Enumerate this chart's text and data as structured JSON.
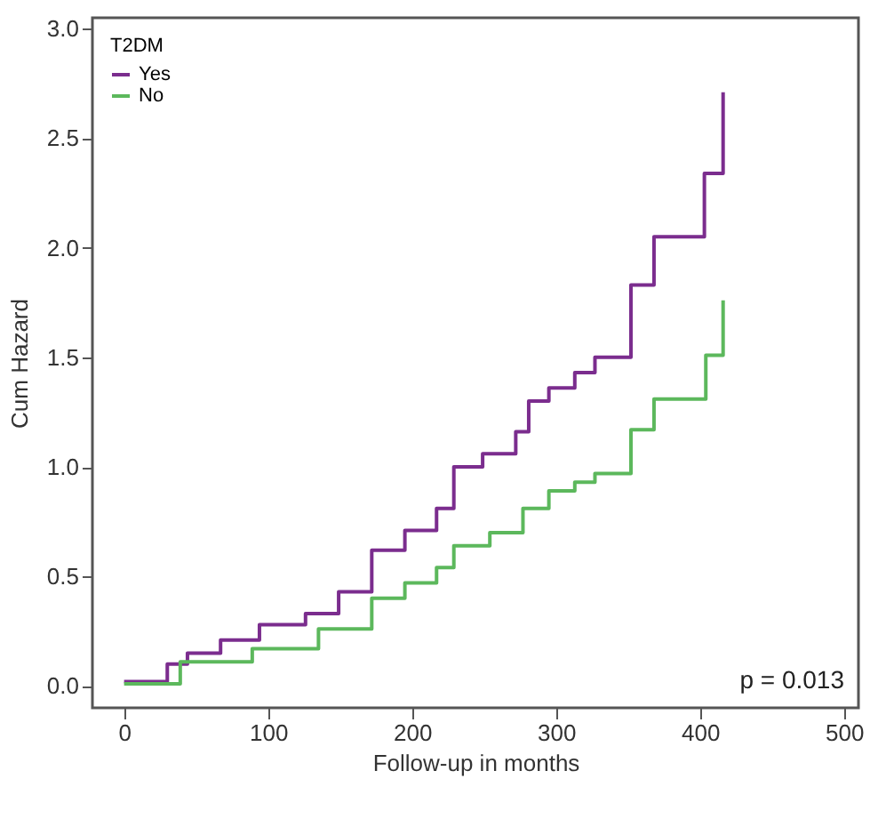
{
  "chart_data": {
    "type": "step",
    "xlabel": "Follow-up in months",
    "ylabel": "Cum Hazard",
    "legend_title": "T2DM",
    "legend": "top left",
    "marker": "none",
    "grid": false,
    "xlim": [
      -22,
      510
    ],
    "xticks": [
      0,
      100,
      200,
      300,
      400,
      500
    ],
    "ylim": [
      -0.1,
      3.05
    ],
    "yticks": [
      {
        "value": 0,
        "label": "0.0"
      },
      0.5,
      {
        "value": 1,
        "label": "1.0"
      },
      1.5,
      {
        "value": 2,
        "label": "2.0"
      },
      2.5,
      {
        "value": 3,
        "label": "3.0"
      }
    ],
    "annotations": [
      "p = 0.013"
    ],
    "series": [
      {
        "name": "Yes",
        "color": "#7b2d8e",
        "x": [
          0,
          30,
          44,
          67,
          94,
          126,
          149,
          172,
          195,
          217,
          229,
          249,
          272,
          281,
          295,
          313,
          327,
          352,
          368,
          403,
          416
        ],
        "values": [
          0.02,
          0.1,
          0.15,
          0.21,
          0.28,
          0.33,
          0.43,
          0.62,
          0.71,
          0.81,
          1.0,
          1.06,
          1.16,
          1.3,
          1.36,
          1.43,
          1.5,
          1.83,
          2.05,
          2.34,
          2.71
        ]
      },
      {
        "name": "No",
        "color": "#5cb85c",
        "x": [
          0,
          39,
          89,
          135,
          172,
          195,
          217,
          229,
          254,
          277,
          295,
          313,
          327,
          352,
          368,
          404,
          416
        ],
        "values": [
          0.01,
          0.11,
          0.17,
          0.26,
          0.4,
          0.47,
          0.54,
          0.64,
          0.7,
          0.81,
          0.89,
          0.93,
          0.97,
          1.17,
          1.31,
          1.51,
          1.76
        ]
      }
    ]
  }
}
